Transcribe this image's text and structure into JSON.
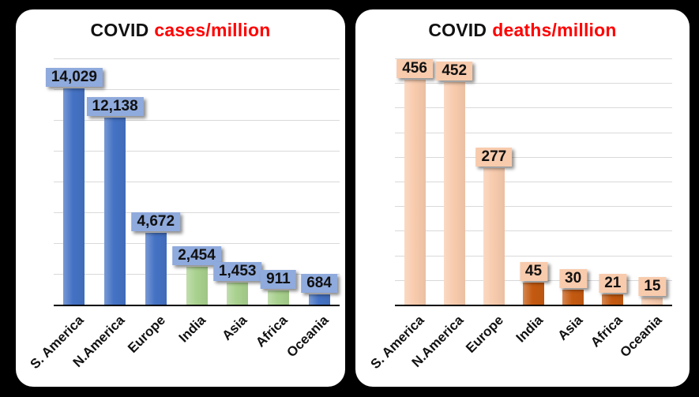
{
  "page": {
    "background": "#000000",
    "panel_background": "#FFFFFF",
    "grid_color": "#D9D9D9",
    "axis_color": "#000000"
  },
  "chart_data": [
    {
      "type": "bar",
      "title": {
        "prefix": "COVID",
        "suffix": "cases/million",
        "prefix_color": "#111111",
        "suffix_color": "#FF0000"
      },
      "categories": [
        "S. America",
        "N.America",
        "Europe",
        "India",
        "Asia",
        "Africa",
        "Oceania"
      ],
      "values": [
        14029,
        12138,
        4672,
        2454,
        1453,
        911,
        684
      ],
      "value_labels": [
        "14,029",
        "12,138",
        "4,672",
        "2,454",
        "1,453",
        "911",
        "684"
      ],
      "bar_colors": [
        "#4472C4",
        "#4472C4",
        "#4472C4",
        "#A9D18E",
        "#A9D18E",
        "#A9D18E",
        "#4472C4"
      ],
      "value_box_color": "#8FAADC",
      "ylim": [
        0,
        16000
      ],
      "grid_step": 2000,
      "gridlines": true,
      "legend": "none",
      "xlabel": "",
      "ylabel": ""
    },
    {
      "type": "bar",
      "title": {
        "prefix": "COVID",
        "suffix": "deaths/million",
        "prefix_color": "#111111",
        "suffix_color": "#FF0000"
      },
      "categories": [
        "S. America",
        "N.America",
        "Europe",
        "India",
        "Asia",
        "Africa",
        "Oceania"
      ],
      "values": [
        456,
        452,
        277,
        45,
        30,
        21,
        15
      ],
      "value_labels": [
        "456",
        "452",
        "277",
        "45",
        "30",
        "21",
        "15"
      ],
      "bar_colors": [
        "#F8CBAD",
        "#F8CBAD",
        "#F8CBAD",
        "#C55A11",
        "#C55A11",
        "#C55A11",
        "#F8CBAD"
      ],
      "value_box_color": "#F8CBAD",
      "ylim": [
        0,
        500
      ],
      "grid_step": 50,
      "gridlines": true,
      "legend": "none",
      "xlabel": "",
      "ylabel": ""
    }
  ]
}
